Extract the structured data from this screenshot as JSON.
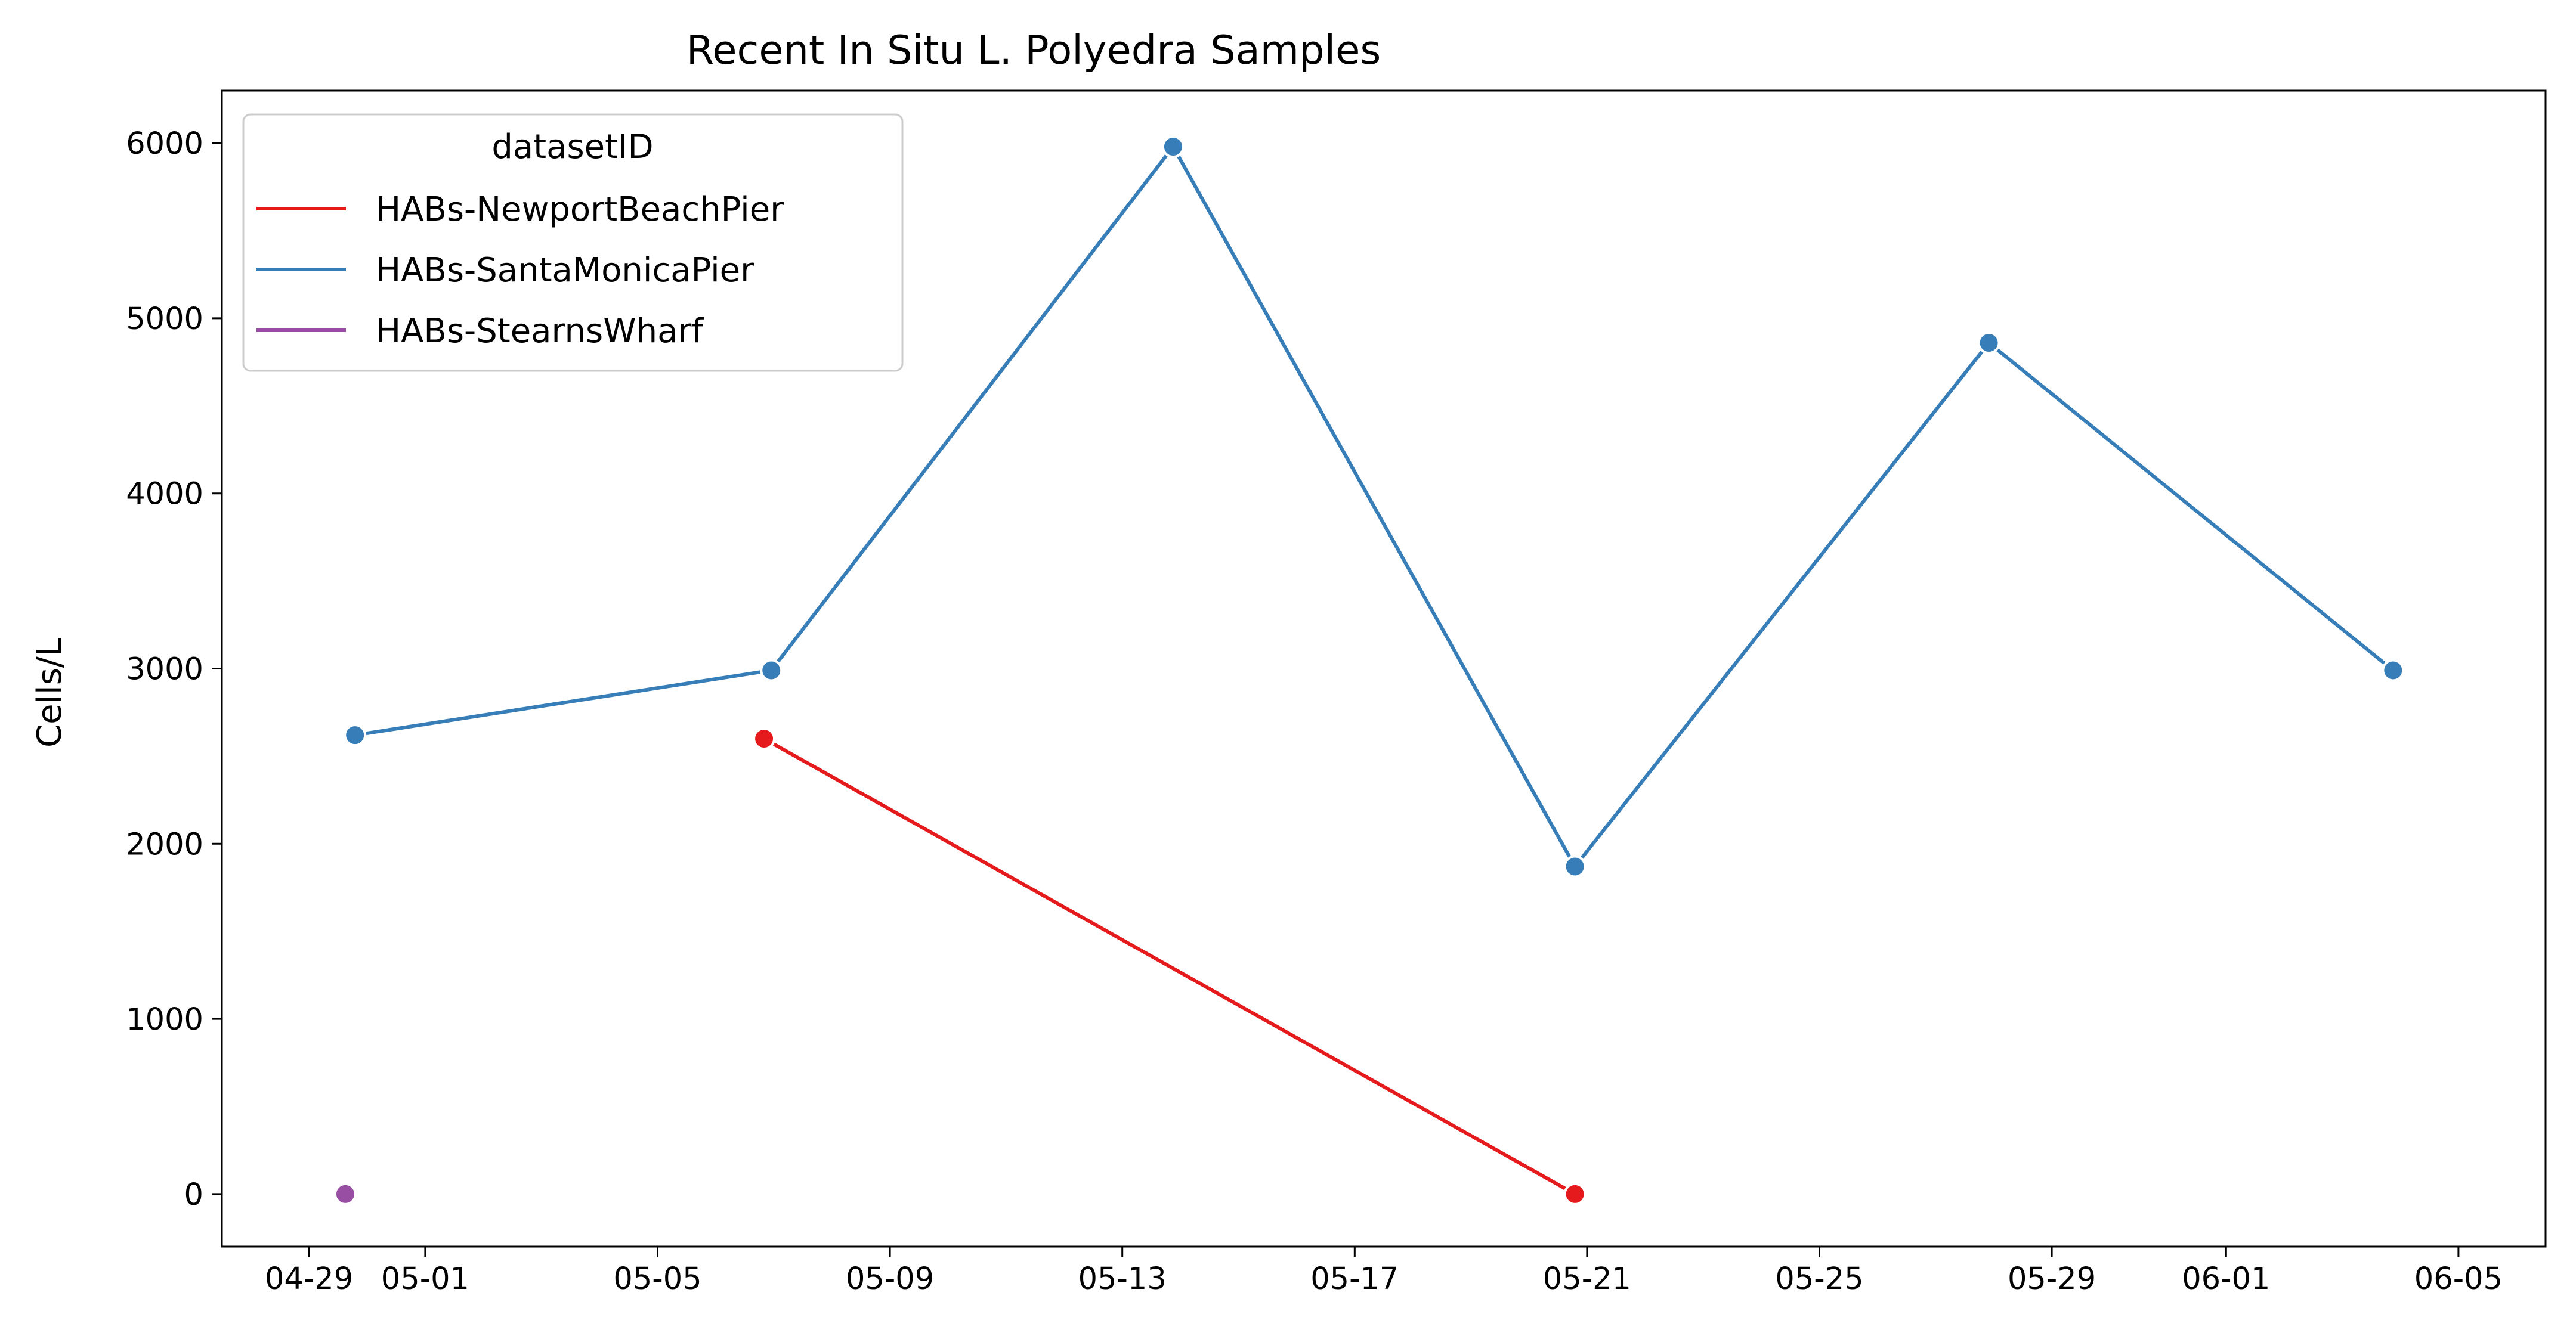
{
  "chart_data": {
    "type": "line",
    "title": "Recent In Situ L. Polyedra Samples",
    "xlabel": "",
    "ylabel": "Cells/L",
    "ylim": [
      -300,
      6300
    ],
    "xlim": [
      "2023-04-27T12:00",
      "2023-06-06T12:00"
    ],
    "x_ticks": [
      {
        "date": "2023-04-29",
        "label": "04-29"
      },
      {
        "date": "2023-05-01",
        "label": "05-01"
      },
      {
        "date": "2023-05-05",
        "label": "05-05"
      },
      {
        "date": "2023-05-09",
        "label": "05-09"
      },
      {
        "date": "2023-05-13",
        "label": "05-13"
      },
      {
        "date": "2023-05-17",
        "label": "05-17"
      },
      {
        "date": "2023-05-21",
        "label": "05-21"
      },
      {
        "date": "2023-05-25",
        "label": "05-25"
      },
      {
        "date": "2023-05-29",
        "label": "05-29"
      },
      {
        "date": "2023-06-01",
        "label": "06-01"
      },
      {
        "date": "2023-06-05",
        "label": "06-05"
      }
    ],
    "y_ticks": [
      0,
      1000,
      2000,
      3000,
      4000,
      5000,
      6000
    ],
    "grid": false,
    "legend": {
      "title": "datasetID",
      "position": "top-left"
    },
    "series": [
      {
        "name": "HABs-NewportBeachPier",
        "color": "#e41a1c",
        "points": [
          {
            "x": "2023-05-06T20:00",
            "y": 2600
          },
          {
            "x": "2023-05-20T19:00",
            "y": 0
          }
        ]
      },
      {
        "name": "HABs-SantaMonicaPier",
        "color": "#377eb8",
        "points": [
          {
            "x": "2023-04-29T19:00",
            "y": 2620
          },
          {
            "x": "2023-05-06T23:00",
            "y": 2990
          },
          {
            "x": "2023-05-13T21:00",
            "y": 5980
          },
          {
            "x": "2023-05-20T19:00",
            "y": 1870
          },
          {
            "x": "2023-05-27T22:00",
            "y": 4860
          },
          {
            "x": "2023-06-03T21:00",
            "y": 2990
          }
        ]
      },
      {
        "name": "HABs-StearnsWharf",
        "color": "#984ea3",
        "points": [
          {
            "x": "2023-04-29T15:00",
            "y": 0
          }
        ]
      }
    ]
  }
}
